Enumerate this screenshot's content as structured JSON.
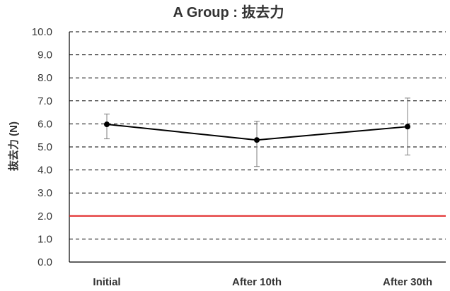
{
  "chart_data": {
    "type": "line",
    "title": "A Group : 抜去力",
    "xlabel": "",
    "ylabel": "抜去力 (N)",
    "categories": [
      "Initial",
      "After 10th",
      "After 30th"
    ],
    "series": [
      {
        "values": [
          5.98,
          5.3,
          5.88
        ],
        "error_low": [
          5.35,
          4.15,
          4.65
        ],
        "error_high": [
          6.43,
          6.12,
          7.12
        ]
      }
    ],
    "reference_line": {
      "value": 2.0,
      "color": "#e02020"
    },
    "ylim": [
      0,
      10
    ],
    "yticks": [
      "0.0",
      "1.0",
      "2.0",
      "3.0",
      "4.0",
      "5.0",
      "6.0",
      "7.0",
      "8.0",
      "9.0",
      "10.0"
    ],
    "grid": "dashed horizontal",
    "legend": "none",
    "colors": {
      "line": "#000000",
      "error_bar": "#7f7f7f",
      "grid": "#000000",
      "text": "#333333"
    }
  }
}
